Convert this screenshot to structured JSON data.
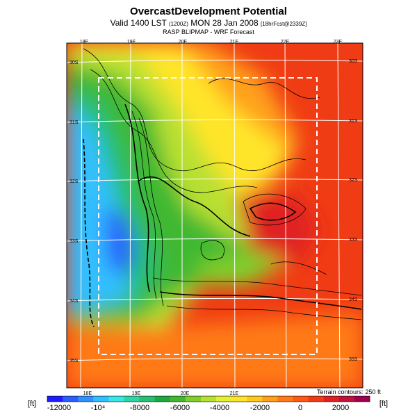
{
  "header": {
    "title": "OvercastDevelopment Potential",
    "valid_prefix": "Valid 1400 LST",
    "valid_small": "(1200Z)",
    "valid_mid": "MON 28 Jan 2008",
    "valid_small2": "[18hrFcst@2339Z]",
    "subtitle": "RASP BLIPMAP - WRF Forecast"
  },
  "map": {
    "lon_labels_top": [
      "18E",
      "19E",
      "20E",
      "21E",
      "22E",
      "23E"
    ],
    "lon_labels_bottom": [
      "18E",
      "19E",
      "20E",
      "21E"
    ],
    "lat_labels_left": [
      "30S",
      "31S",
      "32S",
      "33S",
      "34S",
      "35S"
    ],
    "lat_labels_right": [
      "30S",
      "31S",
      "32S",
      "33S",
      "34S",
      "35S"
    ],
    "terrain_note": "Terrain contours: 250 ft"
  },
  "colorbar": {
    "unit_left": "[ft]",
    "unit_right": "[ft]",
    "tick_labels": [
      "-12000",
      "-10⁴",
      "-8000",
      "-6000",
      "-4000",
      "-2000",
      "0",
      "2000"
    ],
    "colors": [
      "#1c1cff",
      "#2a5cff",
      "#2f90ff",
      "#30c0ff",
      "#36e8e8",
      "#2ed6a6",
      "#28c070",
      "#20a840",
      "#40b832",
      "#80d02c",
      "#b8e030",
      "#e6f032",
      "#ffe52a",
      "#ffc81e",
      "#ffa01a",
      "#ff7a18",
      "#ff5a14",
      "#f03c14",
      "#e02020",
      "#c01040",
      "#a00050"
    ]
  }
}
